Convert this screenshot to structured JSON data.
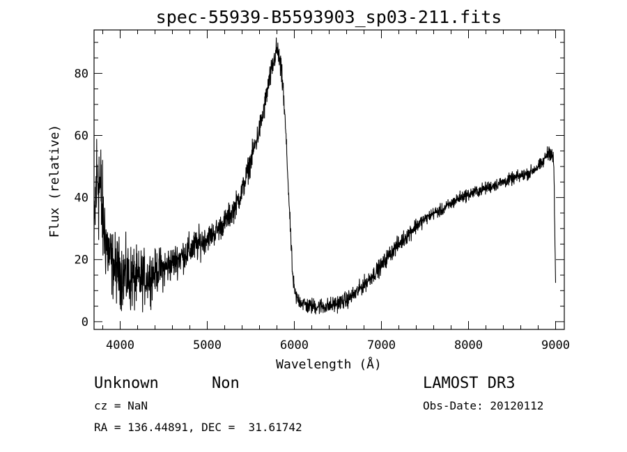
{
  "chart_data": {
    "type": "line",
    "title": "spec-55939-B5593903_sp03-211.fits",
    "xlabel": "Wavelength (Å)",
    "ylabel": "Flux (relative)",
    "xlim": [
      3700,
      9100
    ],
    "ylim": [
      -2.5,
      94
    ],
    "x_ticks": [
      4000,
      5000,
      6000,
      7000,
      8000,
      9000
    ],
    "y_ticks": [
      0,
      20,
      40,
      60,
      80
    ],
    "grid": false,
    "series": [
      {
        "color": "#000000",
        "x": [
          3700,
          3720,
          3740,
          3760,
          3780,
          3800,
          3850,
          3900,
          3950,
          4000,
          4050,
          4100,
          4150,
          4200,
          4250,
          4300,
          4350,
          4400,
          4450,
          4500,
          4600,
          4700,
          4800,
          4900,
          5000,
          5100,
          5200,
          5300,
          5400,
          5500,
          5600,
          5650,
          5700,
          5750,
          5780,
          5800,
          5830,
          5850,
          5870,
          5880,
          5900,
          5920,
          5950,
          5980,
          6000,
          6020,
          6050,
          6100,
          6150,
          6200,
          6300,
          6400,
          6500,
          6600,
          6700,
          6800,
          6900,
          7000,
          7100,
          7200,
          7300,
          7400,
          7500,
          7600,
          7700,
          7800,
          7900,
          8000,
          8100,
          8200,
          8300,
          8400,
          8500,
          8600,
          8700,
          8800,
          8850,
          8900,
          8930,
          8960,
          8980,
          9000
        ],
        "y": [
          25,
          42,
          48,
          45,
          40,
          33,
          24,
          19,
          17,
          16,
          15,
          14,
          14,
          13,
          14,
          14,
          15,
          16,
          17,
          17,
          19,
          21,
          23,
          25,
          27,
          29,
          32,
          36,
          42,
          52,
          62,
          68,
          76,
          82,
          86,
          88,
          84,
          80,
          76,
          70,
          62,
          50,
          32,
          15,
          10,
          8,
          7,
          6,
          5,
          5,
          5,
          5,
          6,
          7,
          9,
          12,
          15,
          18,
          22,
          25,
          28,
          31,
          33,
          35,
          36,
          38,
          40,
          41,
          42,
          43,
          44,
          45,
          46,
          47,
          48,
          50,
          51,
          54,
          55,
          54,
          50,
          12
        ],
        "noise": [
          10,
          14,
          16,
          16,
          14,
          12,
          9,
          8,
          8,
          8,
          8,
          8,
          8,
          7,
          7,
          6,
          6,
          5,
          5,
          5,
          4,
          4,
          4,
          4,
          3,
          3,
          3,
          3,
          3,
          3,
          3,
          3,
          3,
          3,
          3,
          3,
          3,
          3,
          3,
          3,
          2,
          2,
          2,
          2,
          2,
          2,
          2,
          2,
          2,
          2,
          2,
          2,
          2,
          2,
          2,
          2,
          2,
          2,
          2,
          2,
          2,
          2,
          1.5,
          1.5,
          1.5,
          1.5,
          1.5,
          1.5,
          1.5,
          1.5,
          1.5,
          1.5,
          1.5,
          1.5,
          1.5,
          1.5,
          1.5,
          1.5,
          2,
          2,
          3,
          3
        ]
      }
    ]
  },
  "info": {
    "class_label": "Unknown",
    "subclass_label": "Non",
    "survey": "LAMOST DR3",
    "cz_text": "cz = NaN",
    "obs_date_text": "Obs-Date: 20120112",
    "coords_text": "RA = 136.44891, DEC =  31.61742"
  }
}
